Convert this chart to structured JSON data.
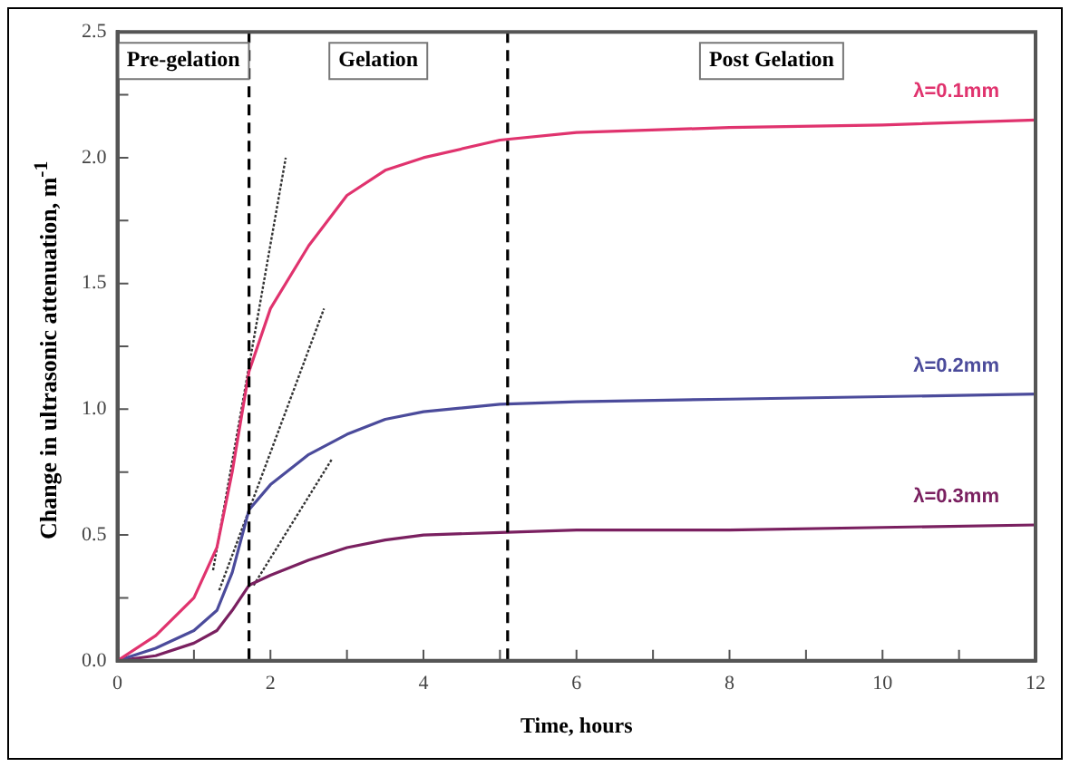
{
  "chart_data": {
    "type": "line",
    "xlabel": "Time, hours",
    "ylabel": "Change in ultrasonic attenuation, m$^{-1}$",
    "xlim": [
      0,
      12
    ],
    "xticks": [
      0,
      {
        "value": 1,
        "label": null
      },
      2,
      {
        "value": 3,
        "label": null
      },
      4,
      {
        "value": 5,
        "label": null
      },
      6,
      {
        "value": 7,
        "label": null
      },
      8,
      {
        "value": 9,
        "label": null
      },
      10,
      {
        "value": 11,
        "label": null
      },
      12
    ],
    "ylim": [
      0,
      2.5
    ],
    "yticks": [
      {
        "value": 0,
        "label": "0.0"
      },
      {
        "value": 0.25,
        "label": null
      },
      {
        "value": 0.5,
        "label": "0.5"
      },
      {
        "value": 0.75,
        "label": null
      },
      {
        "value": 1,
        "label": "1.0"
      },
      {
        "value": 1.25,
        "label": null
      },
      {
        "value": 1.5,
        "label": "1.5"
      },
      {
        "value": 1.75,
        "label": null
      },
      {
        "value": 2,
        "label": "2.0"
      },
      {
        "value": 2.25,
        "label": null
      },
      {
        "value": 2.5,
        "label": "2.5"
      }
    ],
    "grid": false,
    "legend": false,
    "marker": "none",
    "ref_lines": [
      {
        "axis": "x",
        "value": 1.72,
        "label": null,
        "color": "#000000",
        "line_style": "dashed"
      },
      {
        "axis": "x",
        "value": 5.1,
        "label": null,
        "color": "#000000",
        "line_style": "dashed"
      }
    ],
    "annotations": [
      "Pre-gelation",
      "Gelation",
      "Post Gelation"
    ],
    "x": [
      0,
      0.5,
      1,
      1.3,
      1.5,
      1.72,
      2,
      2.5,
      3,
      3.5,
      4,
      5,
      6,
      8,
      10,
      12
    ],
    "series": [
      {
        "name": "λ=0.1mm",
        "color": "#e0336e",
        "values": [
          0,
          0.1,
          0.25,
          0.45,
          0.75,
          1.15,
          1.4,
          1.65,
          1.85,
          1.95,
          2.0,
          2.07,
          2.1,
          2.12,
          2.13,
          2.15
        ]
      },
      {
        "name": "λ=0.2mm",
        "color": "#4b4b9b",
        "values": [
          0,
          0.05,
          0.12,
          0.2,
          0.35,
          0.6,
          0.7,
          0.82,
          0.9,
          0.96,
          0.99,
          1.02,
          1.03,
          1.04,
          1.05,
          1.06
        ]
      },
      {
        "name": "λ=0.3mm",
        "color": "#7a2060",
        "values": [
          0,
          0.02,
          0.07,
          0.12,
          0.2,
          0.3,
          0.34,
          0.4,
          0.45,
          0.48,
          0.5,
          0.51,
          0.52,
          0.52,
          0.53,
          0.54
        ]
      },
      {
        "type": "line",
        "color": "#333333",
        "line_style": "dotted",
        "x": [
          1.25,
          2.2
        ],
        "values": [
          0.36,
          2.0
        ]
      },
      {
        "type": "line",
        "color": "#333333",
        "line_style": "dotted",
        "x": [
          1.33,
          2.7
        ],
        "values": [
          0.28,
          1.4
        ]
      },
      {
        "type": "line",
        "color": "#333333",
        "line_style": "dotted",
        "x": [
          1.78,
          2.8
        ],
        "values": [
          0.3,
          0.8
        ]
      }
    ]
  }
}
